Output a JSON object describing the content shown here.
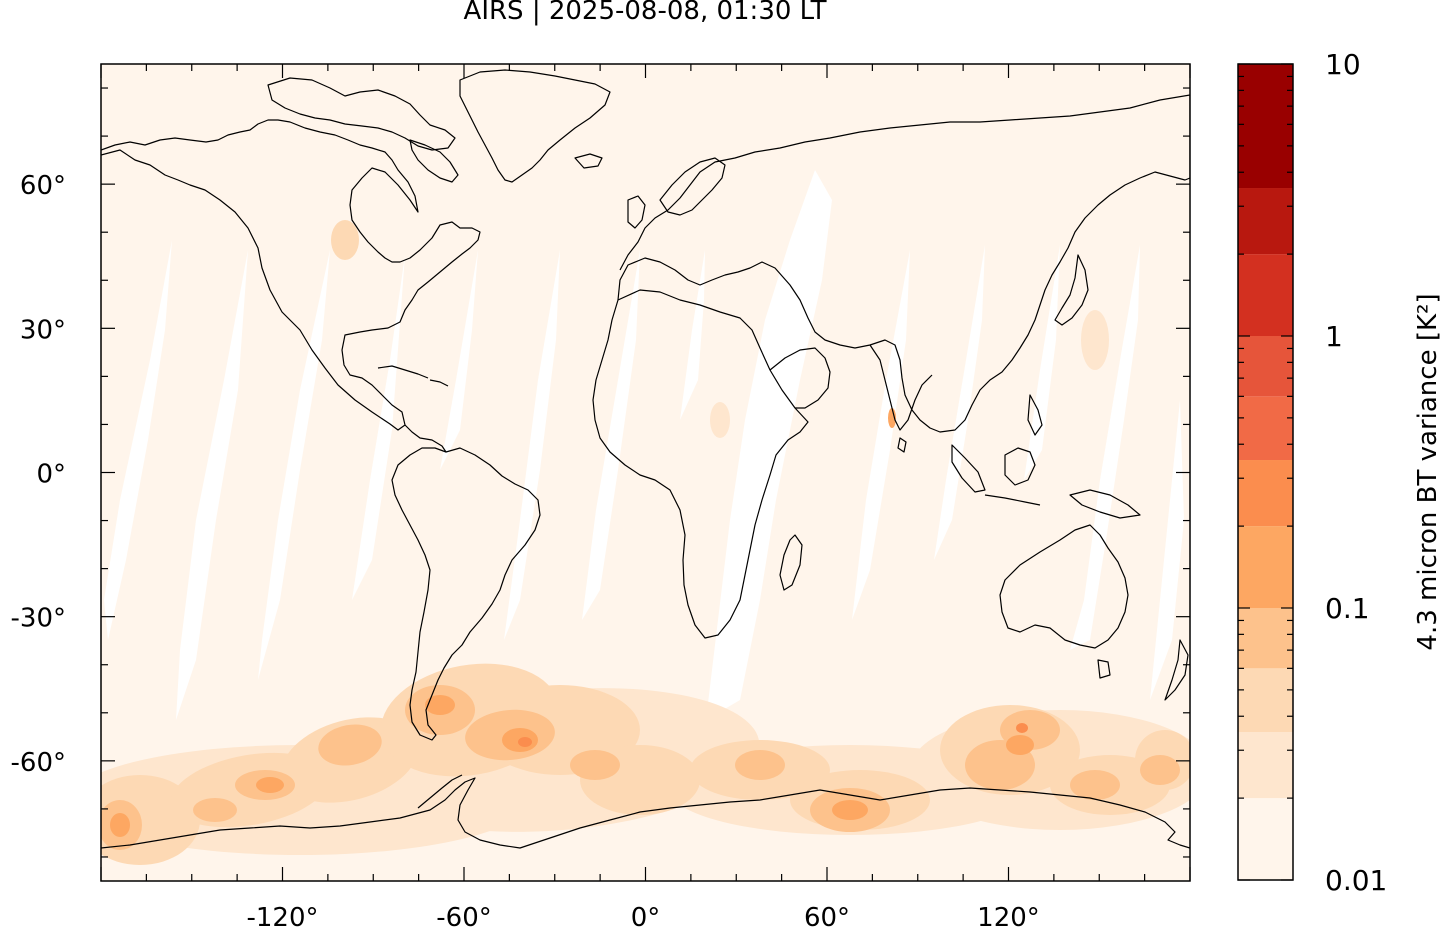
{
  "title": "AIRS | 2025-08-08, 01:30 LT",
  "map": {
    "lon_range": [
      -180,
      180
    ],
    "lat_range": [
      -85,
      85
    ],
    "lon_ticks": [
      {
        "value": -120,
        "label": "-120°"
      },
      {
        "value": -60,
        "label": "-60°"
      },
      {
        "value": 0,
        "label": "0°"
      },
      {
        "value": 60,
        "label": "60°"
      },
      {
        "value": 120,
        "label": "120°"
      }
    ],
    "lat_ticks": [
      {
        "value": 60,
        "label": "60°"
      },
      {
        "value": 30,
        "label": "30°"
      },
      {
        "value": 0,
        "label": "0°"
      },
      {
        "value": -30,
        "label": "-30°"
      },
      {
        "value": -60,
        "label": "-60°"
      }
    ],
    "background_color": "#fff5eb",
    "gap_color": "#ffffff",
    "coastline_color": "#000000"
  },
  "colorbar": {
    "title": "4.3 micron BT variance [K²]",
    "scale": "log",
    "range": [
      0.01,
      10
    ],
    "tick_labels": [
      {
        "value": 10,
        "label": "10"
      },
      {
        "value": 1,
        "label": "1"
      },
      {
        "value": 0.1,
        "label": "0.1"
      },
      {
        "value": 0.01,
        "label": "0.01"
      }
    ],
    "levels": [
      0.01,
      0.02,
      0.035,
      0.06,
      0.1,
      0.2,
      0.35,
      0.6,
      1,
      2,
      3.5,
      10
    ],
    "colors": [
      "#fff5eb",
      "#fee6ce",
      "#fdd9b4",
      "#fdc28c",
      "#fda762",
      "#fb8d4e",
      "#f16a46",
      "#e6553a",
      "#d33020",
      "#b8180f",
      "#990000"
    ]
  }
}
